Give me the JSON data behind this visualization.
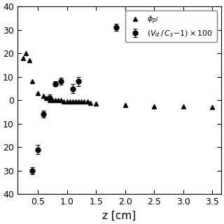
{
  "xlabel": "z [cm]",
  "xlim": [
    0.15,
    3.65
  ],
  "ylim": [
    40,
    -40
  ],
  "ytick_vals": [
    40,
    30,
    20,
    10,
    0,
    -10,
    -20,
    -30,
    -40
  ],
  "ytick_labels": [
    "40",
    "30",
    "20",
    "10",
    "0",
    "10",
    "20",
    "30",
    "40"
  ],
  "xticks": [
    0.5,
    1.0,
    1.5,
    2.0,
    2.5,
    3.0,
    3.5
  ],
  "triangle_data": {
    "x": [
      0.25,
      0.3,
      0.35,
      0.4,
      0.5,
      0.6,
      0.65,
      0.7,
      0.75,
      0.8,
      0.85,
      0.9,
      0.95,
      1.0,
      1.05,
      1.1,
      1.15,
      1.2,
      1.25,
      1.3,
      1.35,
      1.4,
      1.5,
      2.0,
      2.5,
      3.0,
      3.5
    ],
    "y": [
      -18,
      -20,
      -17,
      -8,
      -3,
      -2,
      -1,
      0,
      0,
      0,
      0,
      0,
      0.5,
      0.5,
      0.5,
      0.5,
      0.5,
      0.5,
      0.5,
      0.5,
      0.5,
      1,
      1.5,
      2,
      2.5,
      2.5,
      3
    ],
    "color": "black",
    "marker": "^",
    "size": 5,
    "label": "$\\phi_{pl}$"
  },
  "circle_data": {
    "x": [
      0.4,
      0.5,
      0.6,
      0.7,
      0.8,
      0.9,
      1.1,
      1.2,
      1.85
    ],
    "y": [
      30,
      21,
      6,
      -1,
      -7,
      -8,
      -5,
      -8,
      -31
    ],
    "yerr": [
      1.5,
      2.0,
      1.5,
      1.5,
      1.0,
      1.5,
      2.0,
      2.0,
      1.5
    ],
    "color": "black",
    "marker": "o",
    "size": 5,
    "label": "$(V_d\\,/\\,C_s\\!-\\!1)\\times100$"
  },
  "legend_fontsize": 8,
  "tick_labelsize": 9,
  "xlabel_fontsize": 11,
  "background_color": "#ffffff",
  "figsize": [
    3.2,
    3.2
  ],
  "dpi": 100
}
